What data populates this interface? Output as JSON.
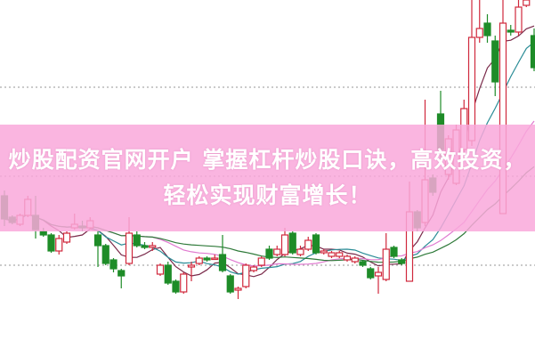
{
  "banner": {
    "line1": "炒股配资官网开户 掌握杠杆炒股口诀，高效投资，",
    "line2": "轻松实现财富增长！",
    "background_color": "#f9a8da"
  },
  "chart_data": {
    "type": "candlestick",
    "ylim": [
      0,
      100
    ],
    "gridlines": [
      25.5,
      50.5,
      75.5
    ],
    "grid_style": "dotted",
    "colors": {
      "up": "#d0283c",
      "down": "#1e8c28",
      "grid": "#aaaaaa"
    },
    "moving_averages": [
      {
        "period": 5,
        "color": "#7a2a4a"
      },
      {
        "period": 10,
        "color": "#2a8c96"
      },
      {
        "period": 20,
        "color": "#e07ad0"
      },
      {
        "period": 30,
        "color": "#2f7a3a"
      }
    ],
    "candles_ohlc": [
      [
        45,
        46.5,
        36.5,
        38.5
      ],
      [
        39,
        39.5,
        37,
        37.5
      ],
      [
        37,
        40,
        36.5,
        39.5
      ],
      [
        39.5,
        45,
        39,
        44
      ],
      [
        39.5,
        45,
        33,
        35.5
      ],
      [
        35,
        36,
        33.5,
        34
      ],
      [
        34,
        34.5,
        29,
        29.5
      ],
      [
        29.5,
        34,
        28.5,
        33
      ],
      [
        32,
        35,
        31.5,
        34.5
      ],
      [
        36,
        40,
        35.5,
        37
      ],
      [
        36.5,
        38,
        35,
        36
      ],
      [
        36,
        39,
        35.5,
        38
      ],
      [
        34,
        35,
        25,
        31
      ],
      [
        31,
        31.5,
        25.5,
        26
      ],
      [
        27,
        27.5,
        23.5,
        24.5
      ],
      [
        24,
        24.5,
        19,
        22.5
      ],
      [
        26,
        39,
        25.5,
        34.5
      ],
      [
        34,
        35,
        30.5,
        31
      ],
      [
        31,
        32,
        30,
        30.5
      ],
      [
        30.5,
        32,
        29.5,
        31
      ],
      [
        23,
        26,
        22.5,
        25.5
      ],
      [
        25.5,
        26.5,
        20,
        20.5
      ],
      [
        21,
        21.5,
        17.5,
        18
      ],
      [
        18,
        23.5,
        17.5,
        23
      ],
      [
        25,
        26.5,
        21,
        25.5
      ],
      [
        26,
        28,
        25.5,
        27.5
      ],
      [
        27.5,
        28,
        26.5,
        27
      ],
      [
        27.5,
        28.5,
        27,
        27.5
      ],
      [
        28.5,
        34,
        23.5,
        24
      ],
      [
        22.5,
        23,
        17.5,
        18
      ],
      [
        18.5,
        19.5,
        16,
        19
      ],
      [
        19.5,
        26,
        19,
        25.5
      ],
      [
        24,
        25.5,
        23.5,
        25
      ],
      [
        25.5,
        28,
        25,
        27.5
      ],
      [
        30,
        31,
        27,
        27.5
      ],
      [
        28.5,
        31,
        28,
        30
      ],
      [
        28.5,
        36,
        28,
        34
      ],
      [
        34.5,
        35,
        28.5,
        29
      ],
      [
        28.5,
        31,
        28,
        30
      ],
      [
        30,
        33.5,
        29.5,
        32.5
      ],
      [
        34,
        34.5,
        28.5,
        29
      ],
      [
        29,
        30,
        28.5,
        29.5
      ],
      [
        28,
        29.5,
        27.5,
        29
      ],
      [
        28,
        29.5,
        27.5,
        29
      ],
      [
        27,
        28.5,
        26.5,
        28
      ],
      [
        26.5,
        28,
        26,
        27.5
      ],
      [
        26.5,
        27,
        25,
        25.5
      ],
      [
        24.5,
        25,
        21.5,
        22
      ],
      [
        22.5,
        25,
        17.5,
        23.5
      ],
      [
        21.5,
        34.5,
        21,
        30
      ],
      [
        30.5,
        31,
        27.5,
        28
      ],
      [
        27,
        27.5,
        25.5,
        26
      ],
      [
        21,
        49,
        21,
        40.5
      ],
      [
        40.5,
        41,
        35,
        36
      ],
      [
        37.5,
        72,
        36.5,
        49.5
      ],
      [
        50,
        51,
        45,
        46
      ],
      [
        68,
        74.5,
        55,
        58
      ],
      [
        51,
        62,
        49.5,
        61
      ],
      [
        48.5,
        65,
        48,
        63.5
      ],
      [
        58,
        72,
        57,
        69.5
      ],
      [
        60.5,
        100,
        59,
        89.5
      ],
      [
        89.5,
        100,
        88,
        92
      ],
      [
        93.5,
        96,
        88,
        90
      ],
      [
        88.5,
        90,
        73,
        77
      ],
      [
        40,
        100,
        40,
        93.5
      ],
      [
        91.5,
        93,
        90,
        91
      ],
      [
        91,
        100,
        90,
        98
      ],
      [
        98.5,
        100,
        98,
        100
      ],
      [
        90,
        92,
        80,
        81
      ]
    ]
  }
}
